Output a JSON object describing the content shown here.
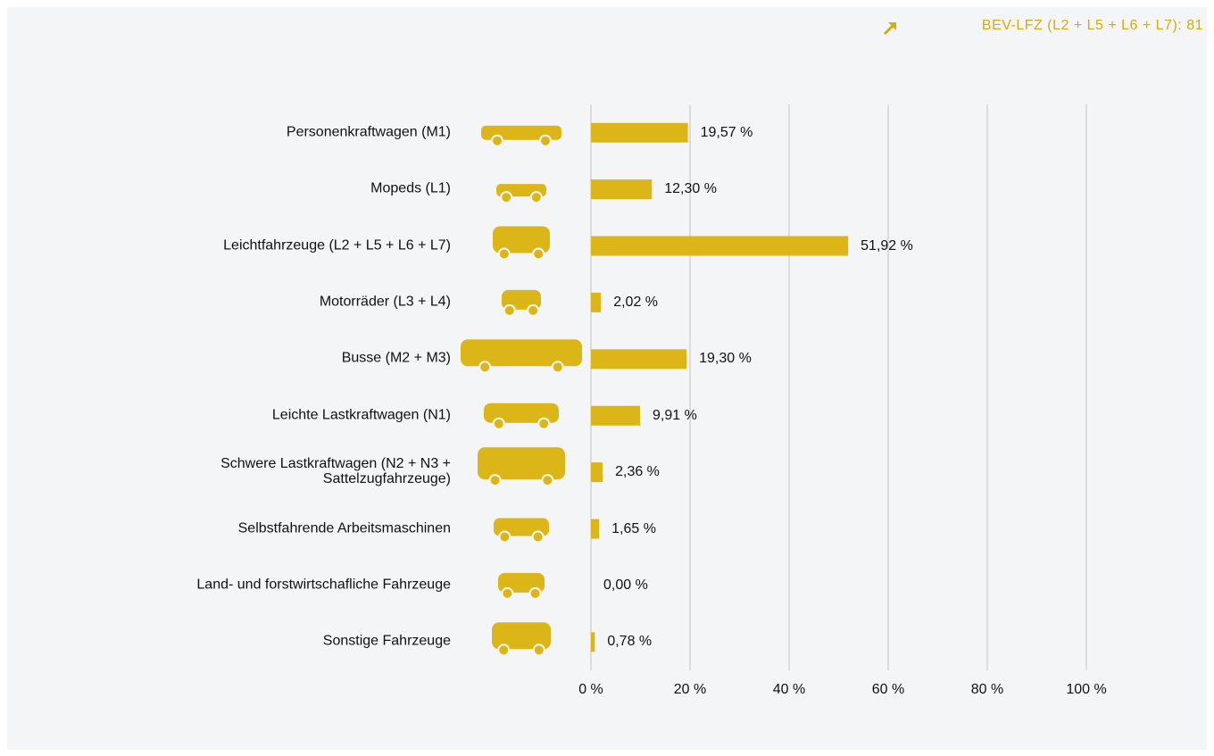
{
  "chart_data": {
    "type": "bar",
    "orientation": "horizontal",
    "annotation": "BEV-LFZ  (L2 + L5 + L6 + L7): 81",
    "categories": [
      "Personenkraftwagen (M1)",
      "Mopeds (L1)",
      "Leichtfahrzeuge (L2 + L5 + L6 + L7)",
      "Motorräder (L3 + L4)",
      "Busse (M2 + M3)",
      "Leichte Lastkraftwagen (N1)",
      "Schwere Lastkraftwagen (N2 + N3 + Sattelzugfahrzeuge)",
      "Selbstfahrende Arbeitsmaschinen",
      "Land- und forstwirtschafliche Fahrzeuge",
      "Sonstige Fahrzeuge"
    ],
    "values": [
      19.57,
      12.3,
      51.92,
      2.02,
      19.3,
      9.91,
      2.36,
      1.65,
      0.0,
      0.78
    ],
    "value_labels": [
      "19,57 %",
      "12,30 %",
      "51,92 %",
      "2,02 %",
      "19,30 %",
      "9,91 %",
      "2,36 %",
      "1,65 %",
      "0,00 %",
      "0,78 %"
    ],
    "color": "#dcb619",
    "xlim": [
      0,
      100
    ],
    "xticks": [
      {
        "value": 0,
        "label": "0 %"
      },
      {
        "value": 20,
        "label": "20 %"
      },
      {
        "value": 40,
        "label": "40 %"
      },
      {
        "value": 60,
        "label": "60 %"
      },
      {
        "value": 80,
        "label": "80 %"
      },
      {
        "value": 100,
        "label": "100 %"
      }
    ],
    "grid": true
  }
}
